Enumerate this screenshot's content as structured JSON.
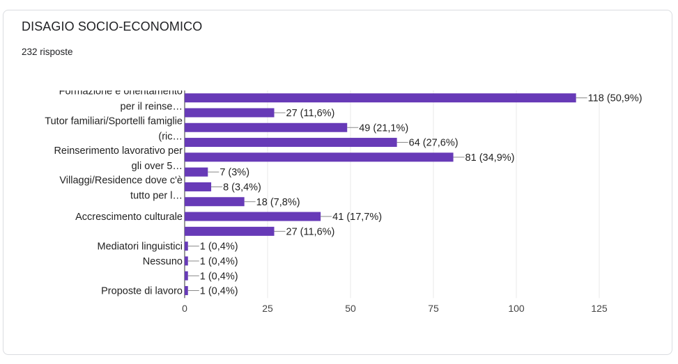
{
  "card": {
    "title": "DISAGIO SOCIO-ECONOMICO",
    "responses": "232 risposte"
  },
  "colors": {
    "bar": "#673ab7",
    "grid": "#e8e8e8",
    "axis": "#333333"
  },
  "chart_data": {
    "type": "bar",
    "orientation": "horizontal",
    "categories": [
      [
        "Formazione e orientamento",
        "per il reinse…"
      ],
      [],
      [
        "Tutor familiari/Sportelli famiglie",
        "(ric…"
      ],
      [],
      [
        "Reinserimento lavorativo per",
        "gli over 5…"
      ],
      [],
      [
        "Villaggi/Residence dove c'è",
        "tutto per l…"
      ],
      [],
      [
        "Accrescimento culturale"
      ],
      [],
      [
        "Mediatori linguistici"
      ],
      [
        "Nessuno"
      ],
      [],
      [
        "Proposte di lavoro"
      ]
    ],
    "values": [
      118,
      27,
      49,
      64,
      81,
      7,
      8,
      18,
      41,
      27,
      1,
      1,
      1,
      1
    ],
    "data_labels": [
      "118 (50,9%)",
      "27 (11,6%)",
      "49 (21,1%)",
      "64 (27,6%)",
      "81 (34,9%)",
      "7 (3%)",
      "8 (3,4%)",
      "18 (7,8%)",
      "41 (17,7%)",
      "27 (11,6%)",
      "1 (0,4%)",
      "1 (0,4%)",
      "1 (0,4%)",
      "1 (0,4%)"
    ],
    "xlim": [
      0,
      125
    ],
    "xticks": [
      "0",
      "25",
      "50",
      "75",
      "100",
      "125"
    ],
    "grid": true
  }
}
